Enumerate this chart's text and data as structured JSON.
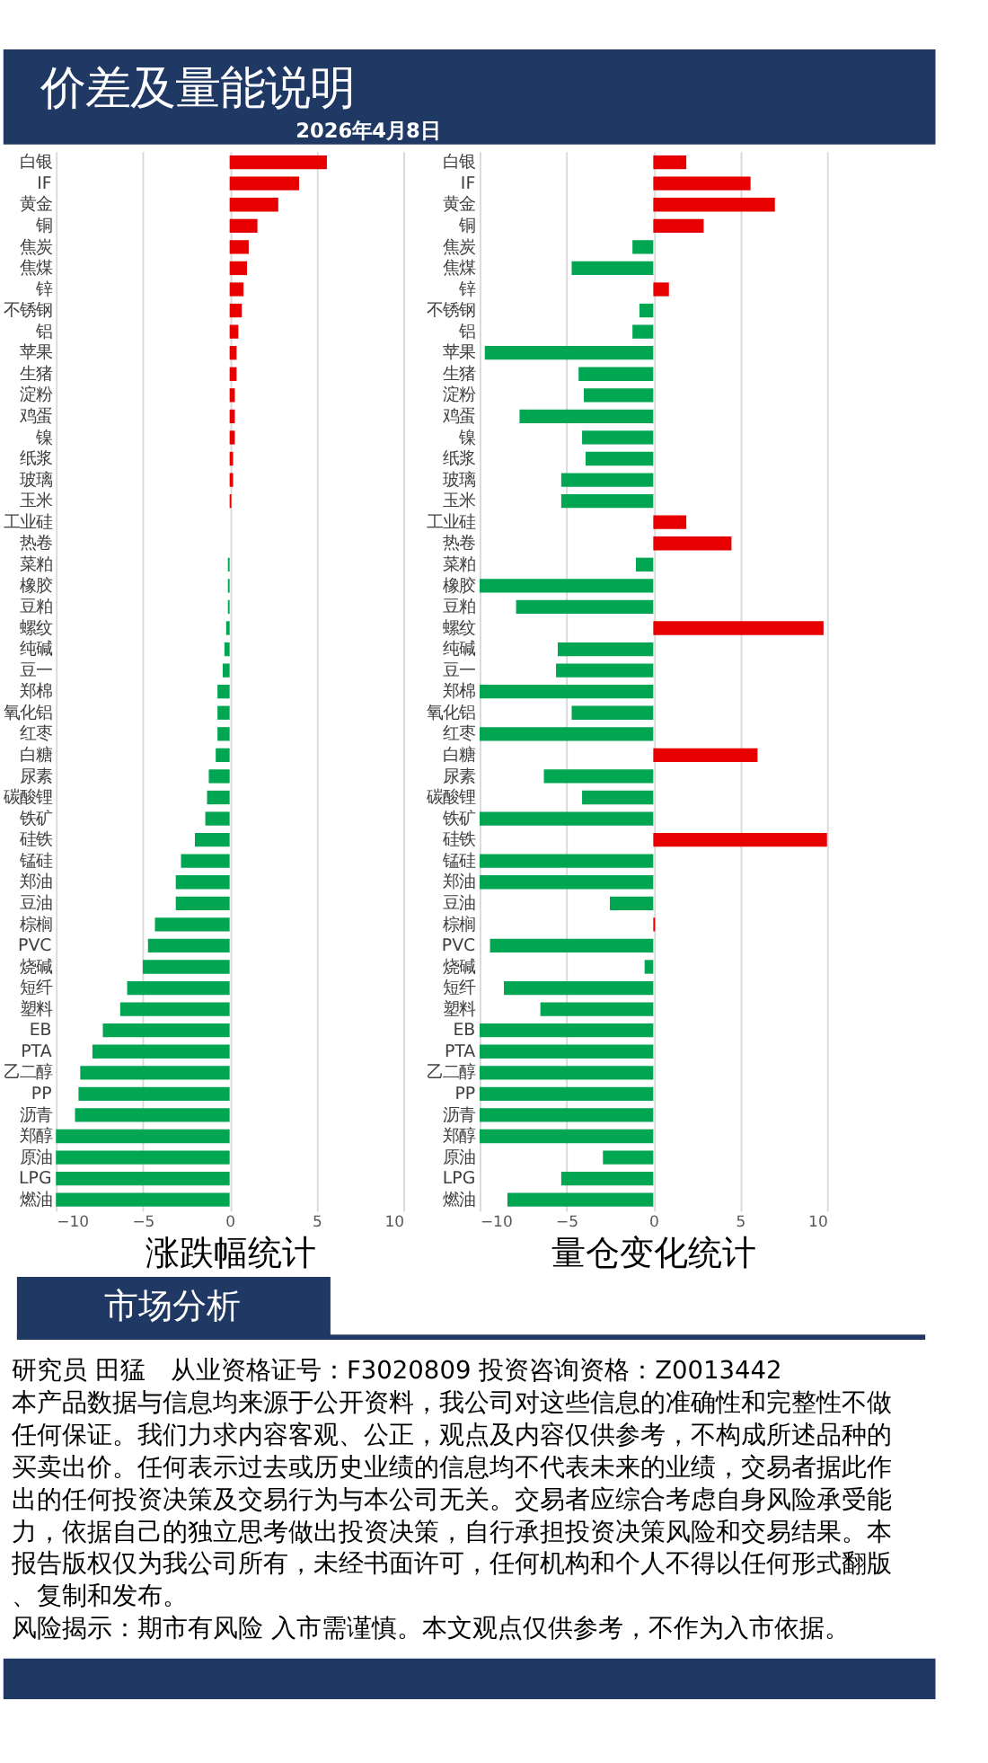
{
  "chart_data": [
    {
      "type": "bar",
      "orientation": "horizontal",
      "title": "价差及量能说明",
      "subtitle": "2026年4月8日",
      "xlabel": "涨跌幅统计",
      "categories": [
        "白银",
        "IF",
        "黄金",
        "铜",
        "焦炭",
        "焦煤",
        "锌",
        "不锈钢",
        "铝",
        "苹果",
        "生猪",
        "淀粉",
        "鸡蛋",
        "镍",
        "纸浆",
        "玻璃",
        "玉米",
        "工业硅",
        "热卷",
        "菜粕",
        "橡胶",
        "豆粕",
        "螺纹",
        "纯碱",
        "豆一",
        "郑棉",
        "氧化铝",
        "红枣",
        "白糖",
        "尿素",
        "碳酸锂",
        "铁矿",
        "硅铁",
        "锰硅",
        "郑油",
        "豆油",
        "棕榈",
        "PVC",
        "烧碱",
        "短纤",
        "塑料",
        "EB",
        "PTA",
        "乙二醇",
        "PP",
        "沥青",
        "郑醇",
        "原油",
        "LPG",
        "燃油"
      ],
      "values": [
        5.6,
        4.0,
        2.8,
        1.6,
        1.1,
        1.0,
        0.8,
        0.7,
        0.5,
        0.4,
        0.4,
        0.3,
        0.3,
        0.3,
        0.2,
        0.2,
        0.1,
        0,
        0,
        -0.1,
        -0.1,
        -0.1,
        -0.2,
        -0.3,
        -0.4,
        -0.7,
        -0.7,
        -0.7,
        -0.8,
        -1.2,
        -1.3,
        -1.4,
        -2.0,
        -2.8,
        -3.1,
        -3.1,
        -4.3,
        -4.7,
        -5.0,
        -5.9,
        -6.3,
        -7.3,
        -7.9,
        -8.6,
        -8.7,
        -8.9,
        -10,
        -10,
        -10,
        -10
      ],
      "colors": [
        "#e60000",
        "#e60000",
        "#e60000",
        "#e60000",
        "#e60000",
        "#e60000",
        "#e60000",
        "#e60000",
        "#e60000",
        "#e60000",
        "#e60000",
        "#e60000",
        "#e60000",
        "#e60000",
        "#e60000",
        "#e60000",
        "#e60000",
        "#e60000",
        "#e60000",
        "#00a651",
        "#00a651",
        "#00a651",
        "#00a651",
        "#00a651",
        "#00a651",
        "#00a651",
        "#00a651",
        "#00a651",
        "#00a651",
        "#00a651",
        "#00a651",
        "#00a651",
        "#00a651",
        "#00a651",
        "#00a651",
        "#00a651",
        "#00a651",
        "#00a651",
        "#00a651",
        "#00a651",
        "#00a651",
        "#00a651",
        "#00a651",
        "#00a651",
        "#00a651",
        "#00a651",
        "#00a651",
        "#00a651",
        "#00a651",
        "#00a651"
      ],
      "xlim": [
        -10,
        10
      ],
      "xticks": [
        -10,
        -5,
        0,
        5,
        10
      ],
      "grid": "x",
      "annotations": [
        "市场分析",
        "研究员 田猛　从业资格证号：F3020809 投资咨询资格：Z0013442",
        "本产品数据与信息均来源于公开资料，我公司对这些信息的准确性和完整性不做任何保证。我们力求内容客观、公正，观点及内容仅供参考，不构成所述品种的买卖出价。任何表示过去或历史业绩的信息均不代表未来的业绩，交易者据此作出的任何投资决策及交易行为与本公司无关。交易者应综合考虑自身风险承受能力，依据自己的独立思考做出投资决策，自行承担投资决策风险和交易结果。本报告版权仅为我公司所有，未经书面许可，任何机构和个人不得以任何形式翻版、复制和发布。",
        "风险揭示：期市有风险 入市需谨慎。本文观点仅供参考，不作为入市依据。"
      ]
    },
    {
      "type": "bar",
      "orientation": "horizontal",
      "xlabel": "量仓变化统计",
      "categories": [
        "白银",
        "IF",
        "黄金",
        "铜",
        "焦炭",
        "焦煤",
        "锌",
        "不锈钢",
        "铝",
        "苹果",
        "生猪",
        "淀粉",
        "鸡蛋",
        "镍",
        "纸浆",
        "玻璃",
        "玉米",
        "工业硅",
        "热卷",
        "菜粕",
        "橡胶",
        "豆粕",
        "螺纹",
        "纯碱",
        "豆一",
        "郑棉",
        "氧化铝",
        "红枣",
        "白糖",
        "尿素",
        "碳酸锂",
        "铁矿",
        "硅铁",
        "锰硅",
        "郑油",
        "豆油",
        "棕榈",
        "PVC",
        "烧碱",
        "短纤",
        "塑料",
        "EB",
        "PTA",
        "乙二醇",
        "PP",
        "沥青",
        "郑醇",
        "原油",
        "LPG",
        "燃油"
      ],
      "values": [
        1.9,
        5.6,
        7.0,
        2.9,
        -1.2,
        -4.7,
        0.9,
        -0.8,
        -1.2,
        -9.7,
        -4.3,
        -4.0,
        -7.7,
        -4.1,
        -3.9,
        -5.3,
        -5.3,
        1.9,
        4.5,
        -1.0,
        -10,
        -7.9,
        9.8,
        -5.5,
        -5.6,
        -10,
        -4.7,
        -10,
        6.0,
        -6.3,
        -4.1,
        -10,
        10,
        -10,
        -10,
        -2.5,
        0.1,
        -9.4,
        -0.5,
        -8.6,
        -6.5,
        -10,
        -10,
        -10,
        -10,
        -10,
        -10,
        -2.9,
        -5.3,
        -8.4
      ],
      "colors": [
        "#e60000",
        "#e60000",
        "#e60000",
        "#e60000",
        "#00a651",
        "#00a651",
        "#e60000",
        "#00a651",
        "#00a651",
        "#00a651",
        "#00a651",
        "#00a651",
        "#00a651",
        "#00a651",
        "#00a651",
        "#00a651",
        "#00a651",
        "#e60000",
        "#e60000",
        "#00a651",
        "#00a651",
        "#00a651",
        "#e60000",
        "#00a651",
        "#00a651",
        "#00a651",
        "#00a651",
        "#00a651",
        "#e60000",
        "#00a651",
        "#00a651",
        "#00a651",
        "#e60000",
        "#00a651",
        "#00a651",
        "#00a651",
        "#e60000",
        "#00a651",
        "#00a651",
        "#00a651",
        "#00a651",
        "#00a651",
        "#00a651",
        "#00a651",
        "#00a651",
        "#00a651",
        "#00a651",
        "#00a651",
        "#00a651",
        "#00a651"
      ],
      "xlim": [
        -10,
        10
      ],
      "xticks": [
        -10,
        -5,
        0,
        5,
        10
      ],
      "grid": "x"
    }
  ]
}
